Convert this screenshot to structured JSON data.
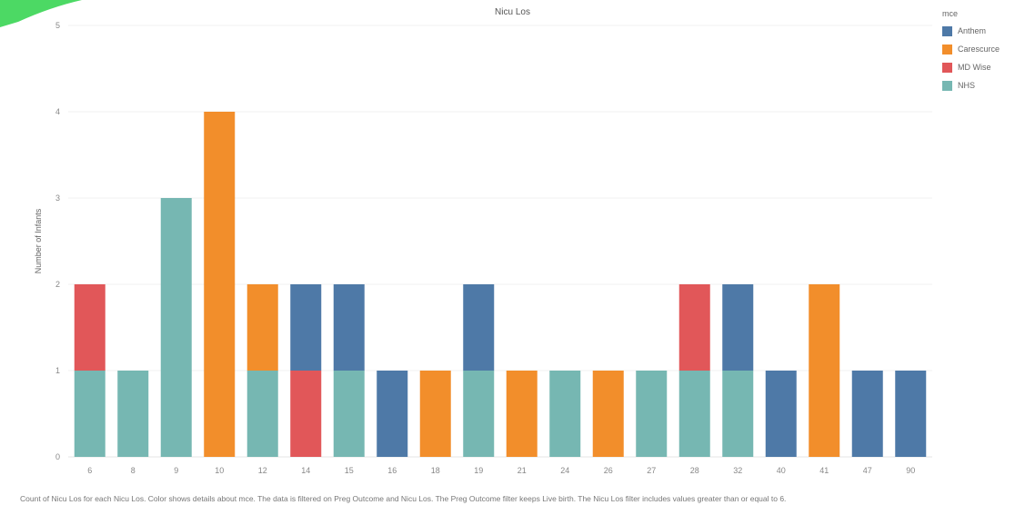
{
  "chart_data": {
    "type": "bar",
    "stacked": true,
    "title": "Nicu Los",
    "xlabel": "",
    "ylabel": "Number of Infants",
    "ylim": [
      0,
      5
    ],
    "yticks": [
      0,
      1,
      2,
      3,
      4,
      5
    ],
    "grid": true,
    "legend_position": "right",
    "legend_title": "mce",
    "categories": [
      "6",
      "8",
      "9",
      "10",
      "12",
      "14",
      "15",
      "16",
      "18",
      "19",
      "21",
      "24",
      "26",
      "27",
      "28",
      "32",
      "40",
      "41",
      "47",
      "90"
    ],
    "series": [
      {
        "name": "NHS",
        "color": "#76b7b2",
        "values": [
          1,
          1,
          3,
          0,
          1,
          0,
          1,
          0,
          0,
          1,
          0,
          1,
          0,
          1,
          1,
          1,
          0,
          0,
          0,
          0
        ]
      },
      {
        "name": "Carescurce",
        "color": "#f28e2b",
        "values": [
          0,
          0,
          0,
          4,
          1,
          0,
          0,
          0,
          1,
          0,
          1,
          0,
          1,
          0,
          0,
          0,
          0,
          2,
          0,
          0
        ]
      },
      {
        "name": "MD Wise",
        "color": "#e15759",
        "values": [
          1,
          0,
          0,
          0,
          0,
          1,
          0,
          0,
          0,
          0,
          0,
          0,
          0,
          0,
          1,
          0,
          0,
          0,
          0,
          0
        ]
      },
      {
        "name": "Anthem",
        "color": "#4e79a7",
        "values": [
          0,
          0,
          0,
          0,
          0,
          1,
          1,
          1,
          0,
          1,
          0,
          0,
          0,
          0,
          0,
          1,
          1,
          0,
          1,
          1
        ]
      }
    ],
    "legend_order": [
      "Anthem",
      "Carescurce",
      "MD Wise",
      "NHS"
    ],
    "caption": "Count of Nicu Los for each Nicu Los.  Color shows details about mce. The data is filtered on Preg Outcome and Nicu Los. The Preg Outcome filter keeps Live birth. The Nicu Los filter includes values greater than or equal to 6."
  }
}
